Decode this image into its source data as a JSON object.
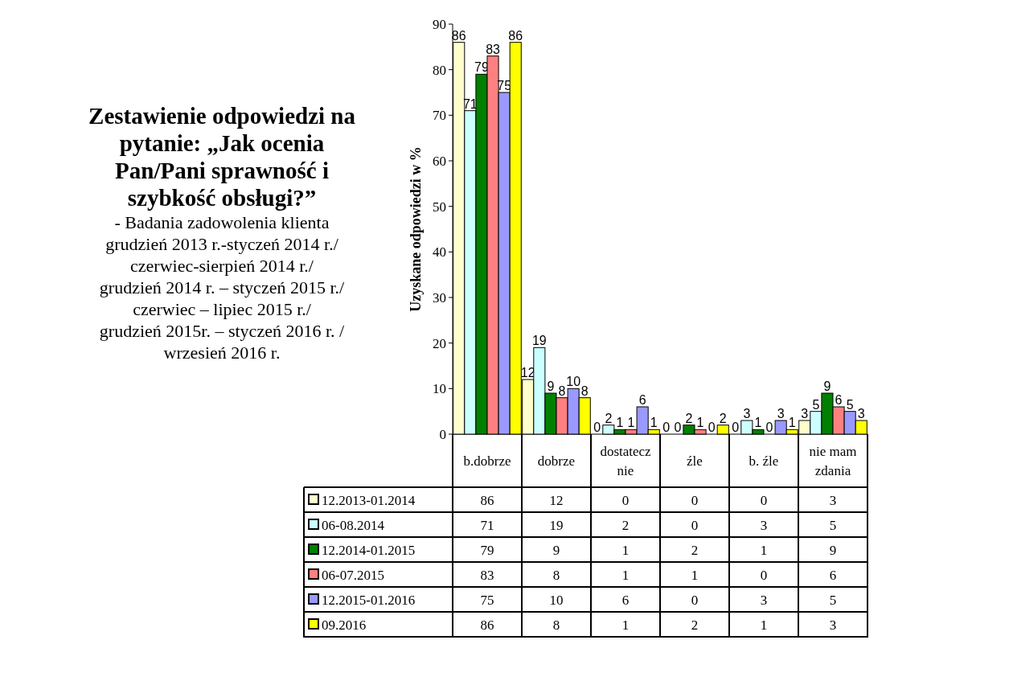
{
  "chart_data": {
    "type": "bar",
    "title": "Zestawienie odpowiedzi na pytanie: „Jak ocenia Pan/Pani sprawność i szybkość obsługi?”",
    "subtitle": "- Badania zadowolenia klienta\ngrudzień 2013 r.-styczeń 2014 r./\nczerwiec-sierpień 2014 r./\ngrudzień 2014 r. – styczeń 2015 r./\nczerwiec – lipiec 2015 r./\ngrudzień 2015r. – styczeń 2016 r. /\nwrzesień 2016 r.",
    "ylabel": "Uzyskane odpowiedzi w %",
    "categories": [
      "b.dobrze",
      "dobrze",
      "dostatecznie",
      "źle",
      "b. źle",
      "nie mam zdania"
    ],
    "series": [
      {
        "name": "12.2013-01.2014",
        "color": "#ffffcc",
        "values": [
          86,
          12,
          0,
          0,
          0,
          3
        ],
        "value_labels": [
          "86",
          "12",
          "0",
          "0",
          "0",
          "3"
        ]
      },
      {
        "name": "06-08.2014",
        "color": "#ccffff",
        "values": [
          71,
          19,
          2,
          0,
          3,
          5
        ],
        "value_labels": [
          "71",
          "19",
          "2",
          "0",
          "3",
          "5"
        ]
      },
      {
        "name": "12.2014-01.2015",
        "color": "#008000",
        "values": [
          79,
          9,
          1,
          2,
          1,
          9
        ],
        "value_labels": [
          "79",
          "9",
          "1",
          "2",
          "1",
          "9"
        ]
      },
      {
        "name": "06-07.2015",
        "color": "#ff8080",
        "values": [
          83,
          8,
          1,
          1,
          0,
          6
        ],
        "value_labels": [
          "83",
          "8",
          "1",
          "1",
          "0",
          "6"
        ]
      },
      {
        "name": "12.2015-01.2016",
        "color": "#9999ff",
        "values": [
          75,
          10,
          6,
          0,
          3,
          5
        ],
        "value_labels": [
          "75",
          "10",
          "6",
          "0",
          "3",
          "5"
        ]
      },
      {
        "name": "09.2016",
        "color": "#ffff00",
        "values": [
          86,
          8,
          1,
          2,
          1,
          3
        ],
        "value_labels": [
          "86",
          "8",
          "1",
          "2",
          "1",
          "3"
        ]
      }
    ],
    "ylim": [
      0,
      90
    ],
    "yticks": [
      0,
      10,
      20,
      30,
      40,
      50,
      60,
      70,
      80,
      90
    ],
    "data_labels": true,
    "legend": "bottom"
  }
}
